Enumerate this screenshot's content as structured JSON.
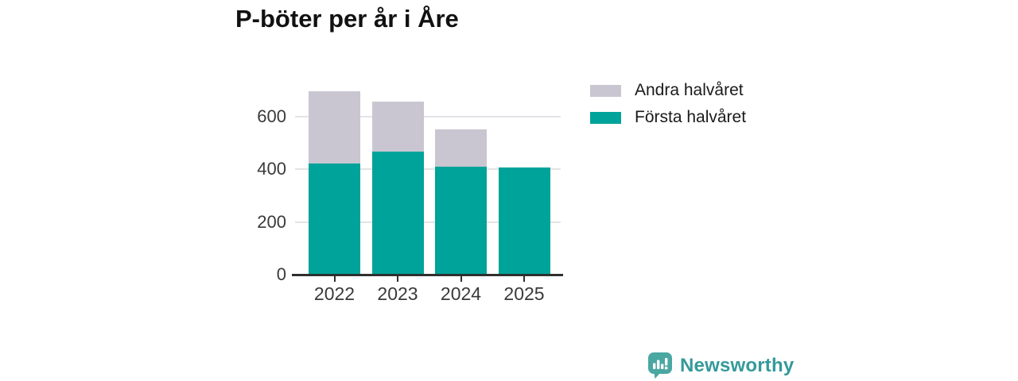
{
  "title": "P-böter per år i Åre",
  "legend": {
    "items": [
      {
        "label": "Andra halvåret",
        "color": "#c9c6d1"
      },
      {
        "label": "Första halvåret",
        "color": "#00a399"
      }
    ]
  },
  "chart_data": {
    "type": "bar",
    "stacked": true,
    "title": "P-böter per år i Åre",
    "categories": [
      "2022",
      "2023",
      "2024",
      "2025"
    ],
    "series": [
      {
        "name": "Första halvåret",
        "color": "#00a399",
        "values": [
          420,
          465,
          410,
          405
        ]
      },
      {
        "name": "Andra halvåret",
        "color": "#c9c6d1",
        "values": [
          275,
          190,
          140,
          0
        ]
      }
    ],
    "totals": [
      695,
      655,
      550,
      405
    ],
    "xlabel": "",
    "ylabel": "",
    "ylim": [
      0,
      700
    ],
    "yticks": [
      0,
      200,
      400,
      600
    ],
    "grid": true,
    "legend_position": "top-right"
  },
  "branding": {
    "logo_text": "Newsworthy",
    "text_color": "#35999a",
    "icon_color": "#4aa7a2"
  },
  "colors": {
    "background": "#ffffff",
    "gridline": "#e3e3e8",
    "axis": "#2f2f2f",
    "tick_label": "#3a3a3a",
    "title_text": "#111111"
  }
}
